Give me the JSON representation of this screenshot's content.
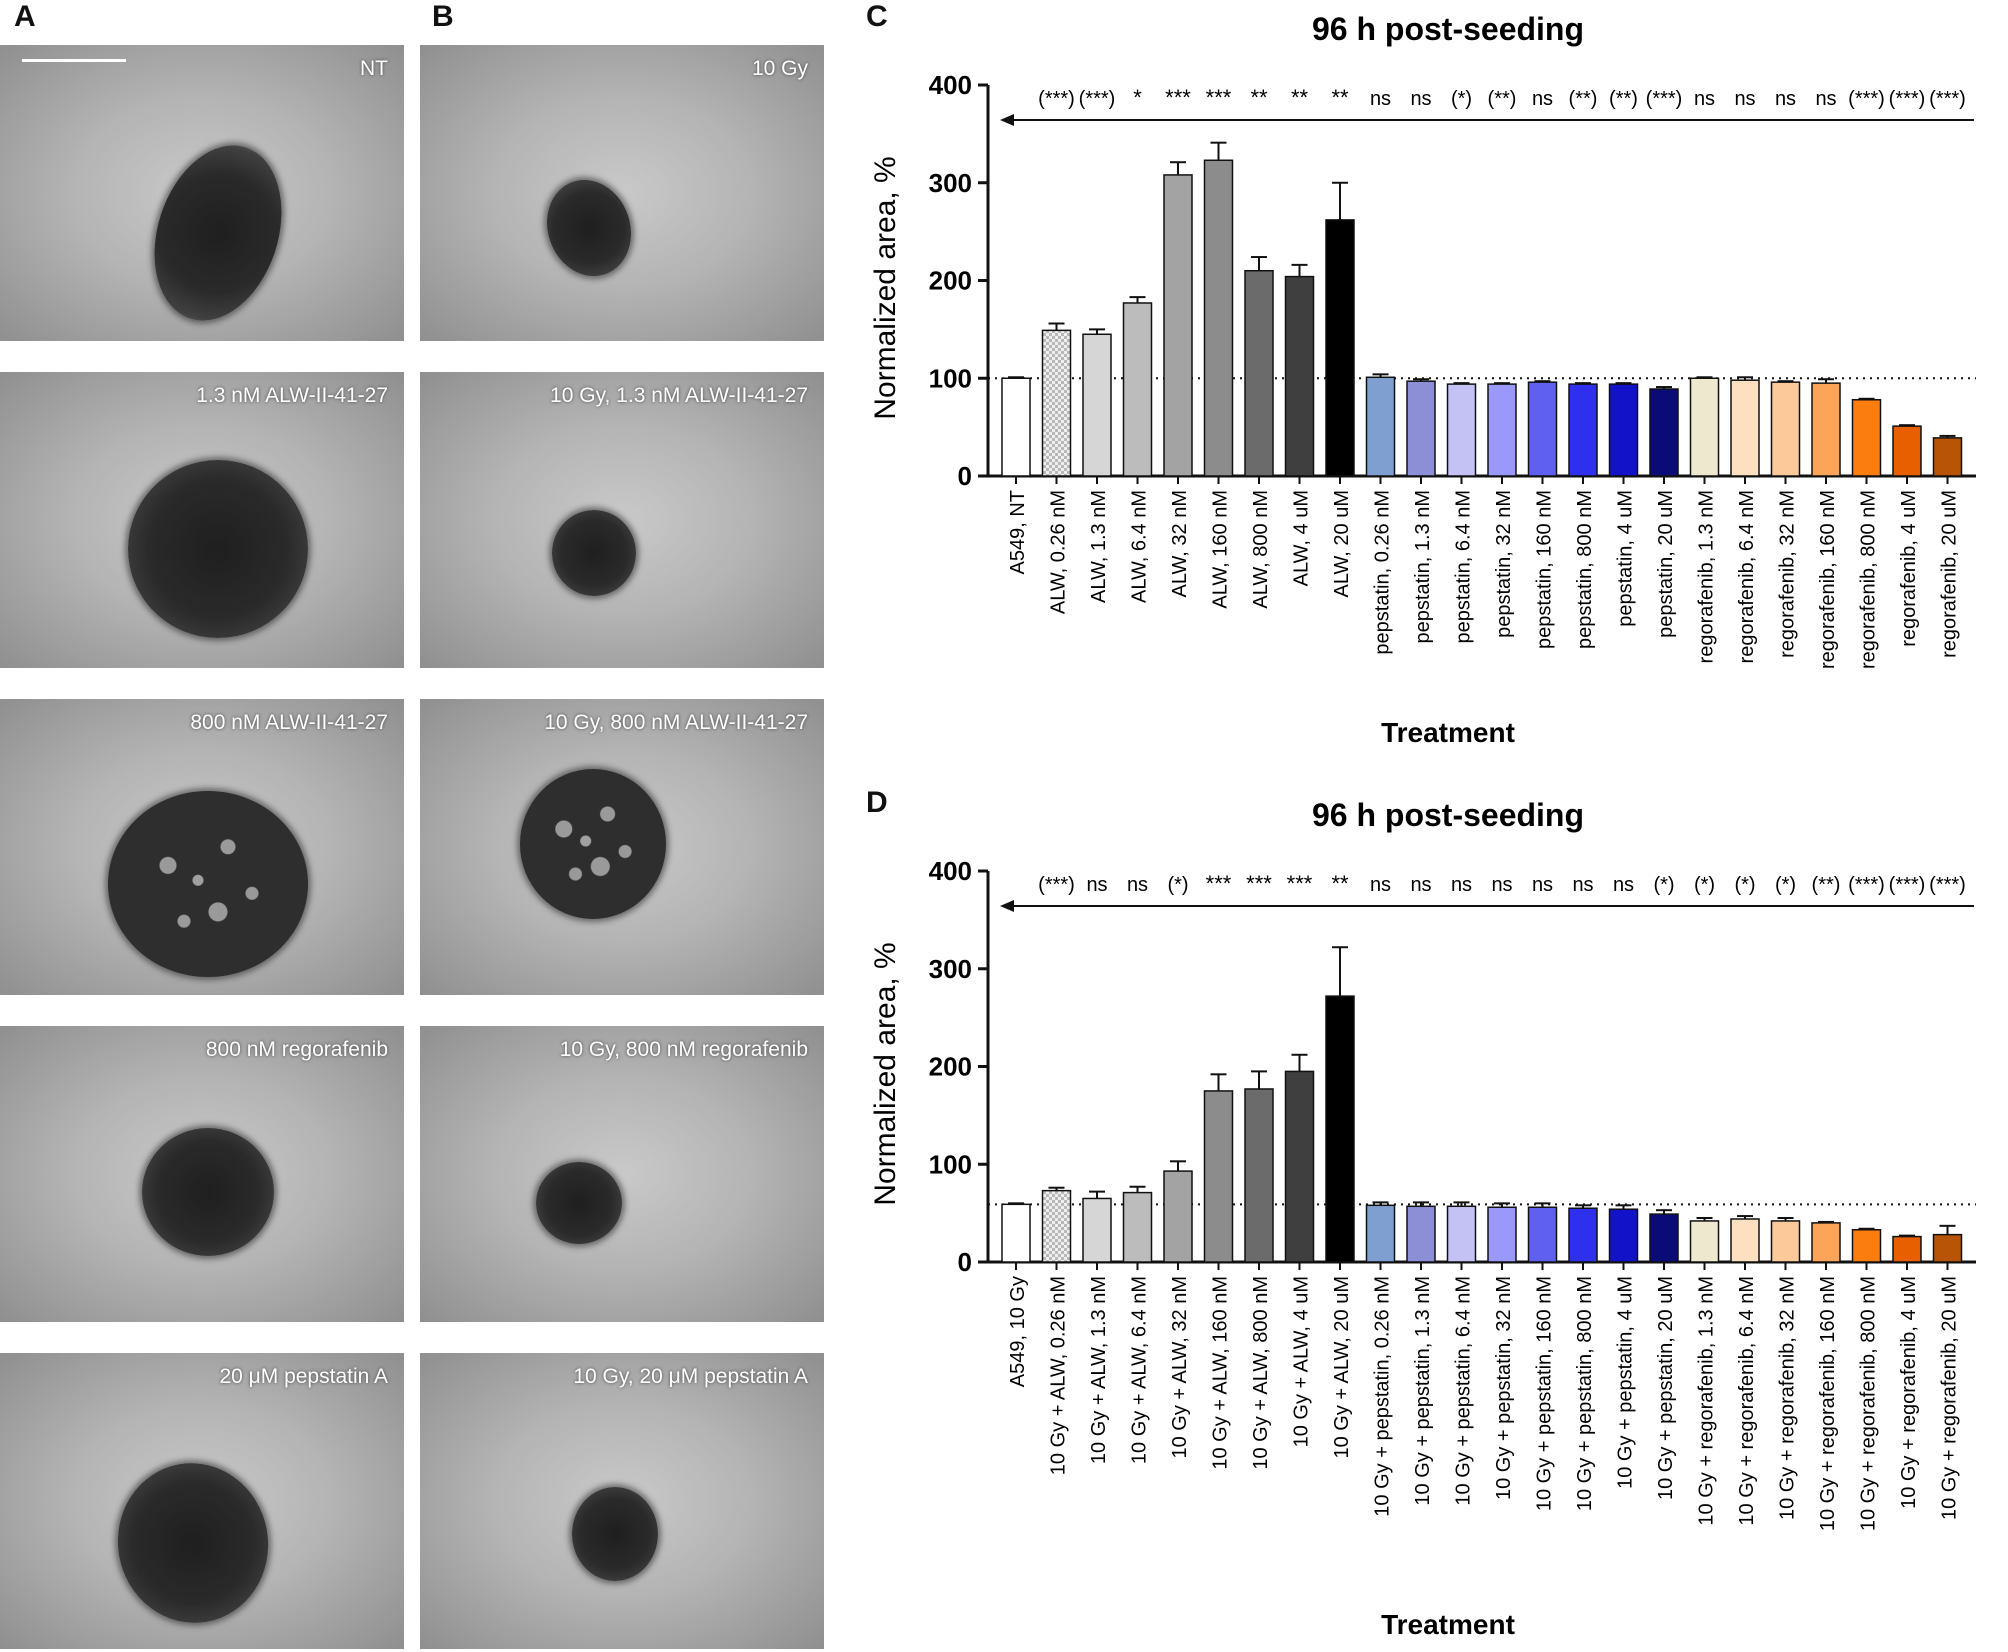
{
  "panels": {
    "a": "A",
    "b": "B",
    "c": "C",
    "d": "D"
  },
  "images": {
    "col_a": [
      "NT",
      "1.3 nM ALW-II-41-27",
      "800 nM ALW-II-41-27",
      "800 nM regorafenib",
      "20 μM pepstatin A"
    ],
    "col_b": [
      "10 Gy",
      "10 Gy, 1.3 nM ALW-II-41-27",
      "10 Gy, 800 nM ALW-II-41-27",
      "10 Gy, 800 nM regorafenib",
      "10 Gy, 20 μM pepstatin A"
    ]
  },
  "colors": {
    "alw": [
      "#ffffff",
      "#d0d0d0",
      "#d6d6d6",
      "#bcbcbc",
      "#a3a3a3",
      "#8c8c8c",
      "#6b6b6b",
      "#3f3f3f",
      "#000000"
    ],
    "pepstatin": [
      "#7f9fd0",
      "#8c8fd6",
      "#c4c2f5",
      "#9a98fa",
      "#6060f0",
      "#2f30ee",
      "#1212c8",
      "#0b0b78"
    ],
    "regorafenib": [
      "#eee8cf",
      "#fde0c0",
      "#fcc99a",
      "#fca55a",
      "#fb7d10",
      "#e85f00",
      "#b85405"
    ]
  },
  "chart_data": [
    {
      "type": "bar",
      "title": "96 h post-seeding",
      "xlabel": "Treatment",
      "ylabel": "Normalized area, %",
      "ylim": [
        0,
        400
      ],
      "yticks": [
        "0",
        "100",
        "200",
        "300",
        "400"
      ],
      "reference_line": 100,
      "categories": [
        "A549, NT",
        "ALW, 0.26 nM",
        "ALW, 1.3 nM",
        "ALW, 6.4 nM",
        "ALW, 32 nM",
        "ALW, 160 nM",
        "ALW, 800 nM",
        "ALW, 4 uM",
        "ALW, 20 uM",
        "pepstatin, 0.26 nM",
        "pepstatin, 1.3 nM",
        "pepstatin, 6.4 nM",
        "pepstatin, 32 nM",
        "pepstatin, 160 nM",
        "pepstatin, 800 nM",
        "pepstatin, 4 uM",
        "pepstatin, 20 uM",
        "regorafenib, 1.3 nM",
        "regorafenib, 6.4 nM",
        "regorafenib, 32 nM",
        "regorafenib, 160 nM",
        "regorafenib, 800 nM",
        "regorafenib, 4 uM",
        "regorafenib, 20 uM"
      ],
      "values": [
        100,
        149,
        145,
        177,
        308,
        323,
        210,
        204,
        262,
        101,
        97,
        94,
        94,
        96,
        94,
        94,
        89,
        100,
        98,
        96,
        95,
        78,
        51,
        39
      ],
      "errors": [
        1,
        7,
        5,
        6,
        13,
        18,
        14,
        12,
        38,
        3,
        2,
        1,
        1,
        1,
        1,
        1,
        2,
        1,
        3,
        1,
        4,
        1,
        1,
        2
      ],
      "significance": [
        "",
        "(***)",
        "(***)",
        "*",
        "***",
        "***",
        "**",
        "**",
        "**",
        "ns",
        "ns",
        "(*)",
        "(**)",
        "ns",
        "(**)",
        "(**)",
        "(***)",
        "ns",
        "ns",
        "ns",
        "ns",
        "(***)",
        "(***)",
        "(***)"
      ]
    },
    {
      "type": "bar",
      "title": "96 h post-seeding",
      "xlabel": "Treatment",
      "ylabel": "Normalized area, %",
      "ylim": [
        0,
        400
      ],
      "yticks": [
        "0",
        "100",
        "200",
        "300",
        "400"
      ],
      "reference_line": 59,
      "categories": [
        "A549, 10 Gy",
        "10 Gy + ALW, 0.26 nM",
        "10 Gy + ALW, 1.3 nM",
        "10 Gy + ALW, 6.4 nM",
        "10 Gy + ALW, 32 nM",
        "10 Gy + ALW, 160 nM",
        "10 Gy + ALW, 800 nM",
        "10 Gy + ALW, 4 uM",
        "10 Gy + ALW, 20 uM",
        "10 Gy + pepstatin, 0.26 nM",
        "10 Gy + pepstatin, 1.3 nM",
        "10 Gy + pepstatin, 6.4 nM",
        "10 Gy + pepstatin, 32 nM",
        "10 Gy + pepstatin, 160 nM",
        "10 Gy + pepstatin, 800 nM",
        "10 Gy + pepstatin, 4 uM",
        "10 Gy + pepstatin, 20 uM",
        "10 Gy + regorafenib, 1.3 nM",
        "10 Gy + regorafenib, 6.4 nM",
        "10 Gy + regorafenib, 32 nM",
        "10 Gy + regorafenib, 160 nM",
        "10 Gy + regorafenib, 800 nM",
        "10 Gy + regorafenib, 4 uM",
        "10 Gy + regorafenib, 20 uM"
      ],
      "values": [
        59,
        73,
        65,
        71,
        93,
        175,
        177,
        195,
        272,
        58,
        57,
        57,
        56,
        56,
        55,
        54,
        49,
        42,
        44,
        42,
        40,
        33,
        26,
        28
      ],
      "errors": [
        1,
        3,
        7,
        6,
        10,
        17,
        18,
        17,
        50,
        3,
        4,
        4,
        4,
        4,
        3,
        4,
        4,
        3,
        3,
        3,
        1,
        1,
        1,
        9
      ],
      "significance": [
        "",
        "(***)",
        "ns",
        "ns",
        "(*)",
        "***",
        "***",
        "***",
        "**",
        "ns",
        "ns",
        "ns",
        "ns",
        "ns",
        "ns",
        "ns",
        "(*)",
        "(*)",
        "(*)",
        "(*)",
        "(**)",
        "(***)",
        "(***)",
        "(***)"
      ]
    }
  ]
}
